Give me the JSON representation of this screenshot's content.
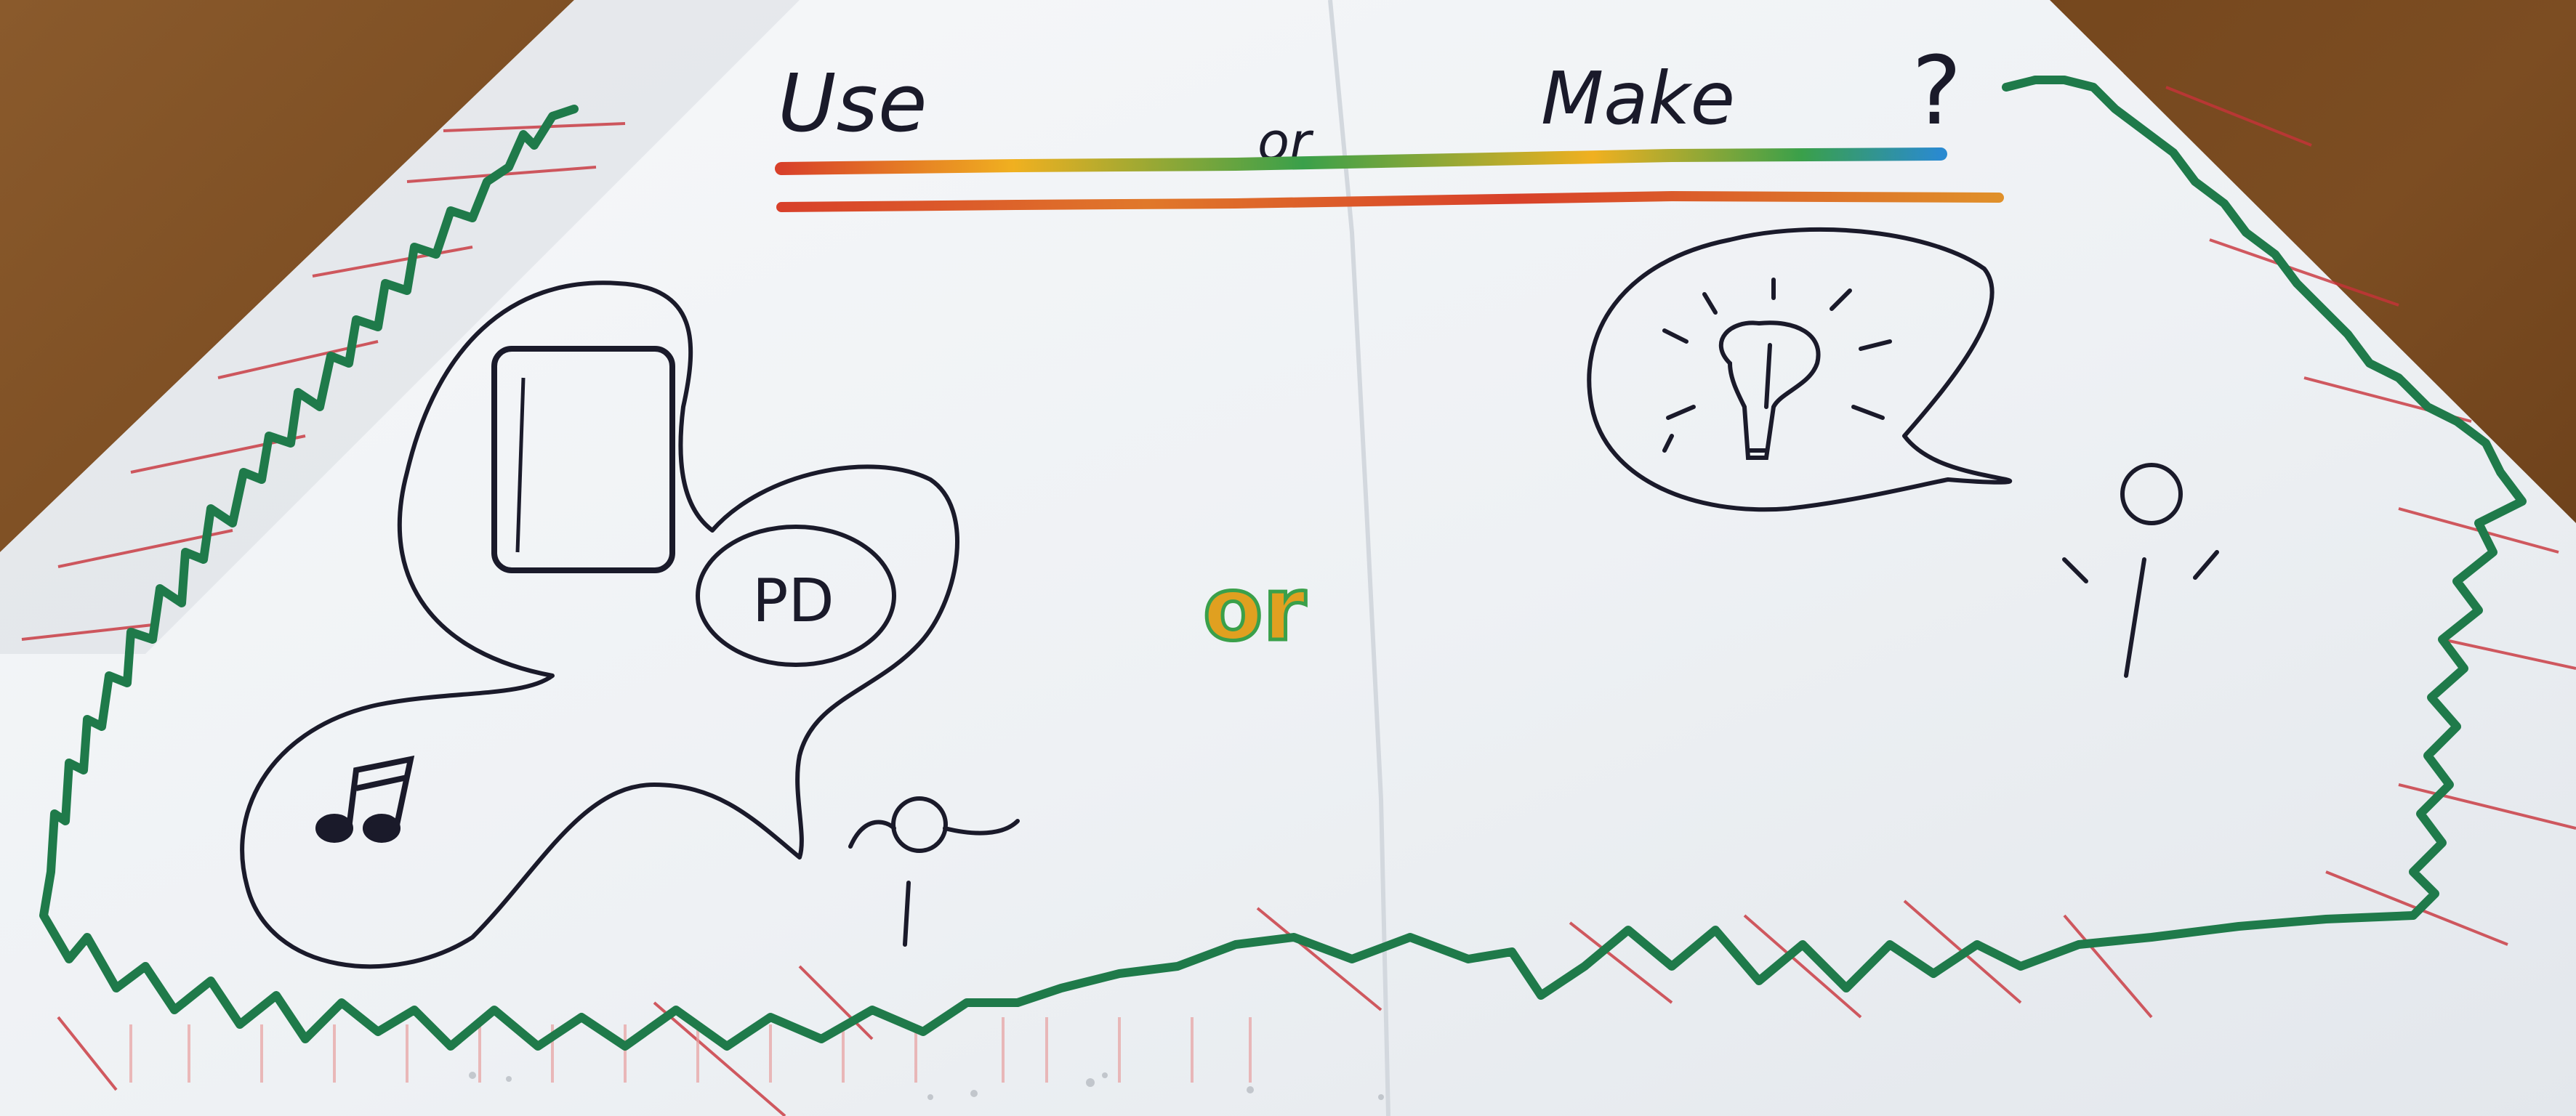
{
  "photo": {
    "title_words": {
      "use": "Use",
      "or": "or",
      "make": "Make",
      "question": "?"
    },
    "middle_word": "or",
    "pd_label": "PD",
    "colors": {
      "table": "#7a4a22",
      "paper": "#f3f5f7",
      "ink": "#1a1a2a",
      "green_border": "#1f7a4a",
      "red_hatch": "#c8323a",
      "rainbow_top": "#f0b020",
      "rainbow_blue": "#2a8ad0",
      "rainbow_red": "#d8402a"
    }
  }
}
